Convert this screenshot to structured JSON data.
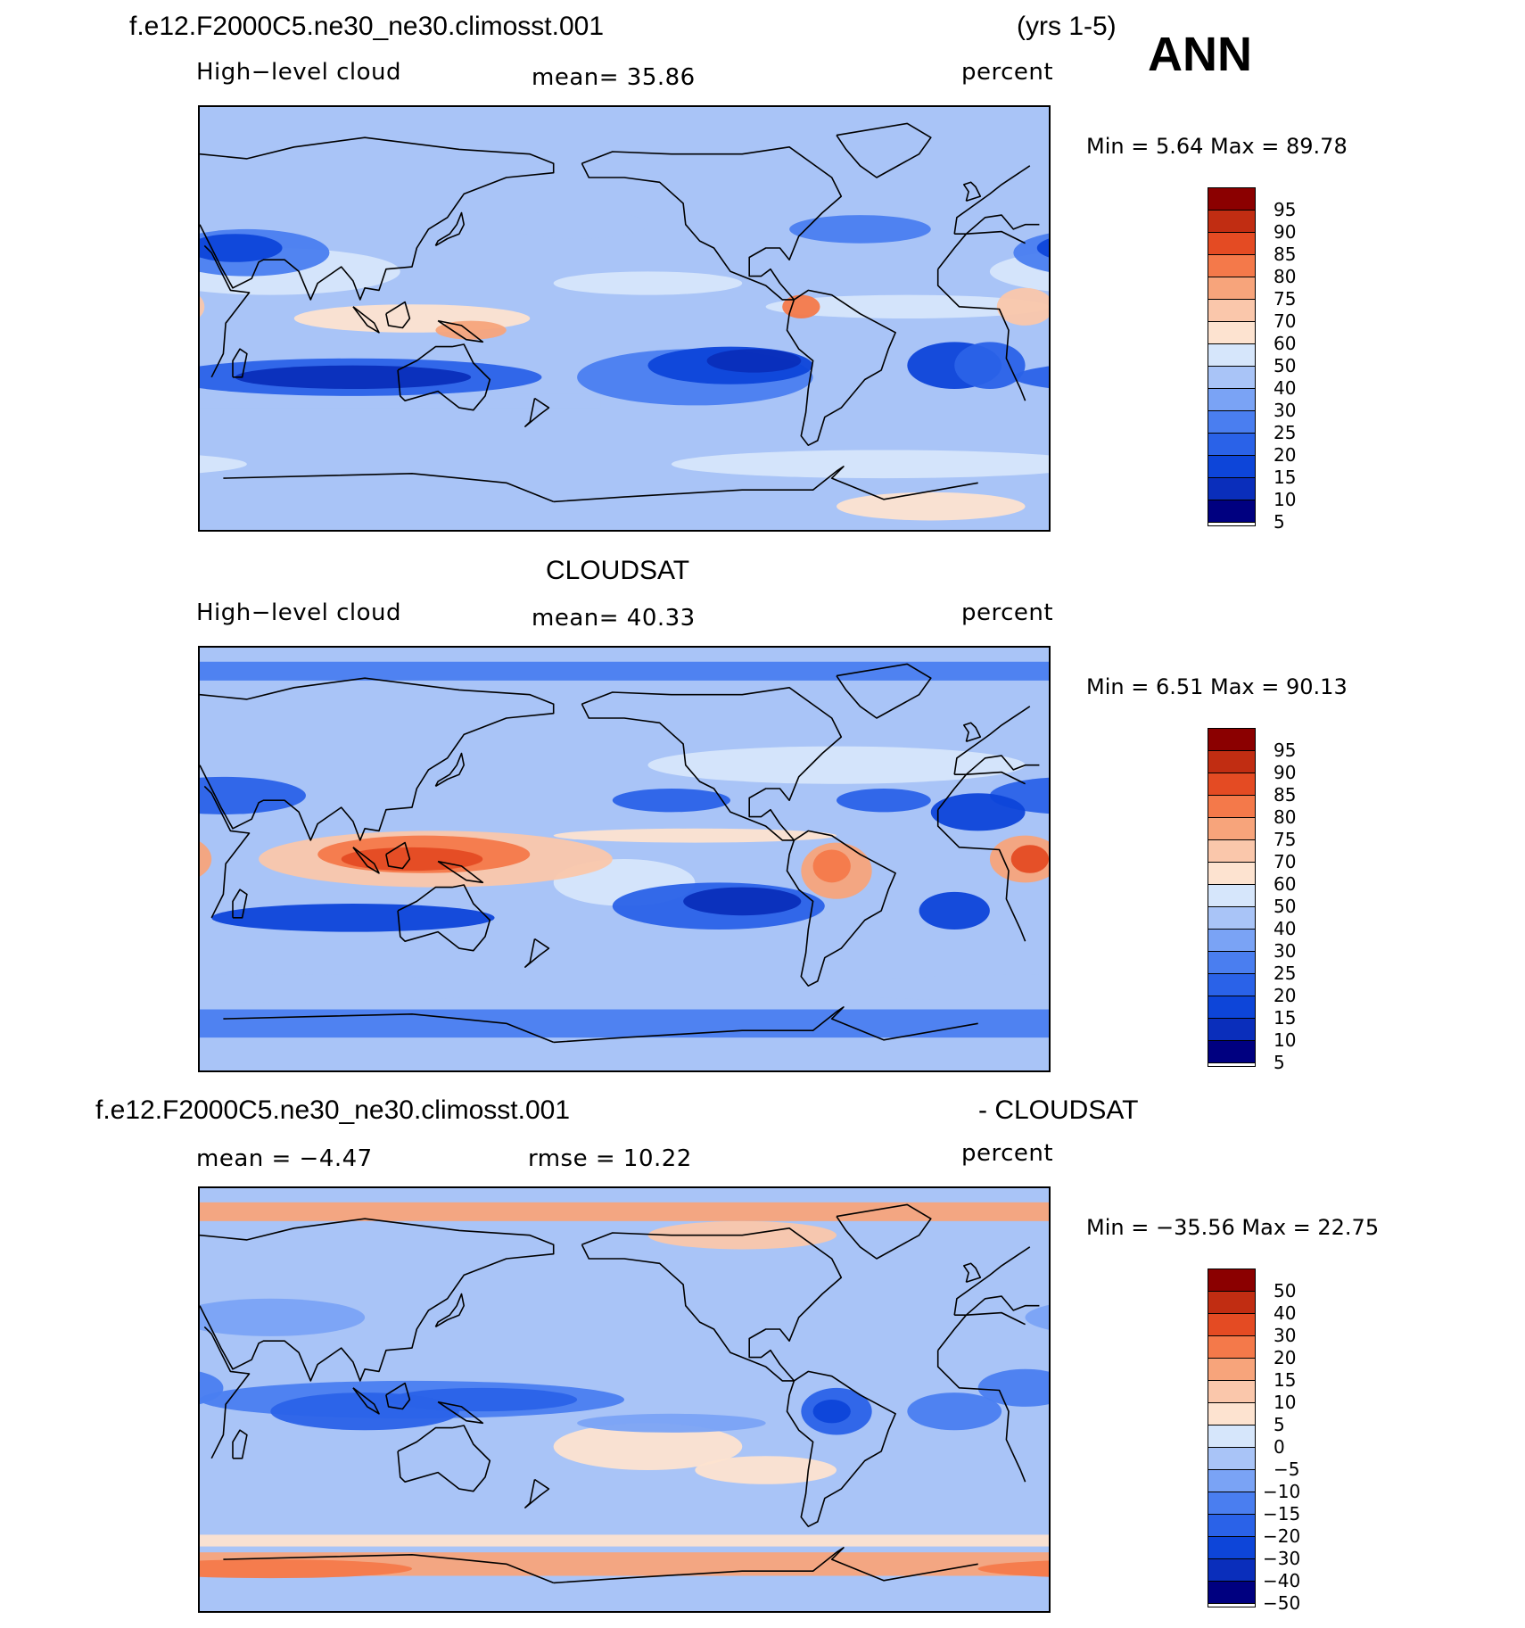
{
  "header": {
    "case_name": "f.e12.F2000C5.ne30_ne30.climosst.001",
    "years": "(yrs 1-5)",
    "season": "ANN"
  },
  "colors": {
    "b7": "#000080",
    "b6": "#0a2ebb",
    "b5": "#0d45d9",
    "b4": "#2a62e8",
    "b3": "#4a7ef0",
    "b2": "#7aa3f5",
    "b1": "#a9c4f7",
    "b0": "#d6e6fb",
    "r0": "#fde3d0",
    "r1": "#fac7ab",
    "r2": "#f7a47b",
    "r3": "#f4794a",
    "r4": "#e44b23",
    "r5": "#c12d12",
    "r6": "#8b0000",
    "land_line": "#000000"
  },
  "panels": [
    {
      "id": "model",
      "top_title": "",
      "left_label": "High−level cloud",
      "center_label": "mean=   35.86",
      "right_label": "percent",
      "minmax": "Min =     5.64  Max =    89.78",
      "colorbar": {
        "levels": [
          "95",
          "90",
          "85",
          "80",
          "75",
          "70",
          "60",
          "50",
          "40",
          "30",
          "25",
          "20",
          "15",
          "10",
          "5"
        ],
        "colors": [
          "#8b0000",
          "#c12d12",
          "#e44b23",
          "#f4794a",
          "#f7a47b",
          "#fac7ab",
          "#fde3d0",
          "#d6e6fb",
          "#a9c4f7",
          "#7aa3f5",
          "#4a7ef0",
          "#2a62e8",
          "#0d45d9",
          "#0a2ebb",
          "#000080"
        ]
      },
      "features": [
        {
          "type": "band",
          "lat": -35,
          "lon0": -180,
          "lon1": -10,
          "width": 6,
          "c": "b1"
        },
        {
          "type": "blob",
          "lat": 15,
          "lon": -140,
          "rx": 40,
          "ry": 5,
          "c": "b0"
        },
        {
          "type": "blob",
          "lat": 5,
          "lon": -30,
          "rx": 60,
          "ry": 5,
          "c": "b0"
        },
        {
          "type": "blob",
          "lat": 20,
          "lon": 60,
          "rx": 55,
          "ry": 10,
          "c": "b0"
        },
        {
          "type": "blob",
          "lat": -62,
          "lon": -40,
          "rx": 90,
          "ry": 6,
          "c": "b0"
        },
        {
          "type": "blob",
          "lat": 38,
          "lon": -50,
          "rx": 30,
          "ry": 6,
          "c": "b3"
        },
        {
          "type": "blob",
          "lat": 28,
          "lon": 50,
          "rx": 35,
          "ry": 10,
          "c": "b3"
        },
        {
          "type": "blob",
          "lat": 30,
          "lon": 45,
          "rx": 20,
          "ry": 6,
          "c": "b5"
        },
        {
          "type": "blob",
          "lat": -25,
          "lon": -120,
          "rx": 50,
          "ry": 12,
          "c": "b3"
        },
        {
          "type": "blob",
          "lat": -20,
          "lon": -105,
          "rx": 35,
          "ry": 8,
          "c": "b5"
        },
        {
          "type": "blob",
          "lat": -18,
          "lon": -95,
          "rx": 20,
          "ry": 5,
          "c": "b6"
        },
        {
          "type": "blob",
          "lat": -25,
          "lon": 95,
          "rx": 80,
          "ry": 8,
          "c": "b4"
        },
        {
          "type": "blob",
          "lat": -25,
          "lon": 95,
          "rx": 50,
          "ry": 5,
          "c": "b6"
        },
        {
          "type": "blob",
          "lat": -20,
          "lon": -10,
          "rx": 20,
          "ry": 10,
          "c": "b5"
        },
        {
          "type": "blob",
          "lat": -20,
          "lon": 5,
          "rx": 15,
          "ry": 10,
          "c": "b4"
        },
        {
          "type": "blob",
          "lat": 40,
          "lon": -170,
          "rx": 30,
          "ry": 6,
          "c": "b1"
        },
        {
          "type": "blob",
          "lat": 0,
          "lon": 120,
          "rx": 50,
          "ry": 6,
          "c": "r0"
        },
        {
          "type": "blob",
          "lat": 5,
          "lon": 20,
          "rx": 12,
          "ry": 8,
          "c": "r1"
        },
        {
          "type": "blob",
          "lat": -5,
          "lon": 145,
          "rx": 15,
          "ry": 4,
          "c": "r2"
        },
        {
          "type": "blob",
          "lat": 5,
          "lon": -75,
          "rx": 8,
          "ry": 5,
          "c": "r3"
        },
        {
          "type": "blob",
          "lat": -80,
          "lon": -20,
          "rx": 40,
          "ry": 6,
          "c": "r0"
        }
      ]
    },
    {
      "id": "obs",
      "top_title": "CLOUDSAT",
      "left_label": "High−level cloud",
      "center_label": "mean=   40.33",
      "right_label": "percent",
      "minmax": "Min =     6.51  Max =    90.13",
      "colorbar": {
        "levels": [
          "95",
          "90",
          "85",
          "80",
          "75",
          "70",
          "60",
          "50",
          "40",
          "30",
          "25",
          "20",
          "15",
          "10",
          "5"
        ],
        "colors": [
          "#8b0000",
          "#c12d12",
          "#e44b23",
          "#f4794a",
          "#f7a47b",
          "#fac7ab",
          "#fde3d0",
          "#d6e6fb",
          "#a9c4f7",
          "#7aa3f5",
          "#4a7ef0",
          "#2a62e8",
          "#0d45d9",
          "#0a2ebb",
          "#000080"
        ]
      },
      "features": [
        {
          "type": "band",
          "lat": 80,
          "lon0": -180,
          "lon1": 180,
          "width": 8,
          "c": "b3"
        },
        {
          "type": "band",
          "lat": -70,
          "lon0": -180,
          "lon1": 180,
          "width": 12,
          "c": "b3"
        },
        {
          "type": "blob",
          "lat": 40,
          "lon": -60,
          "rx": 80,
          "ry": 8,
          "c": "b0"
        },
        {
          "type": "blob",
          "lat": -10,
          "lon": -150,
          "rx": 30,
          "ry": 10,
          "c": "b0"
        },
        {
          "type": "blob",
          "lat": -55,
          "lon": 50,
          "rx": 120,
          "ry": 6,
          "c": "b1"
        },
        {
          "type": "blob",
          "lat": 27,
          "lon": 40,
          "rx": 35,
          "ry": 8,
          "c": "b4"
        },
        {
          "type": "blob",
          "lat": 20,
          "lon": 0,
          "rx": 20,
          "ry": 8,
          "c": "b5"
        },
        {
          "type": "blob",
          "lat": 25,
          "lon": -130,
          "rx": 25,
          "ry": 5,
          "c": "b4"
        },
        {
          "type": "blob",
          "lat": 25,
          "lon": -40,
          "rx": 20,
          "ry": 5,
          "c": "b4"
        },
        {
          "type": "blob",
          "lat": -20,
          "lon": -110,
          "rx": 45,
          "ry": 10,
          "c": "b4"
        },
        {
          "type": "blob",
          "lat": -18,
          "lon": -100,
          "rx": 25,
          "ry": 6,
          "c": "b6"
        },
        {
          "type": "blob",
          "lat": -25,
          "lon": 95,
          "rx": 60,
          "ry": 6,
          "c": "b5"
        },
        {
          "type": "blob",
          "lat": -22,
          "lon": -10,
          "rx": 15,
          "ry": 8,
          "c": "b5"
        },
        {
          "type": "blob",
          "lat": 0,
          "lon": 130,
          "rx": 75,
          "ry": 12,
          "c": "r1"
        },
        {
          "type": "blob",
          "lat": 2,
          "lon": 125,
          "rx": 45,
          "ry": 8,
          "c": "r3"
        },
        {
          "type": "blob",
          "lat": 0,
          "lon": 120,
          "rx": 30,
          "ry": 5,
          "c": "r4"
        },
        {
          "type": "blob",
          "lat": 0,
          "lon": 20,
          "rx": 15,
          "ry": 10,
          "c": "r2"
        },
        {
          "type": "blob",
          "lat": 0,
          "lon": 22,
          "rx": 8,
          "ry": 6,
          "c": "r4"
        },
        {
          "type": "blob",
          "lat": -5,
          "lon": -60,
          "rx": 15,
          "ry": 12,
          "c": "r2"
        },
        {
          "type": "blob",
          "lat": -3,
          "lon": -62,
          "rx": 8,
          "ry": 7,
          "c": "r3"
        },
        {
          "type": "blob",
          "lat": 10,
          "lon": -120,
          "rx": 60,
          "ry": 3,
          "c": "r0"
        }
      ]
    },
    {
      "id": "diff",
      "top_title_left": "f.e12.F2000C5.ne30_ne30.climosst.001",
      "top_title_right": "- CLOUDSAT",
      "left_label": "mean =   −4.47",
      "center_label": "rmse =    10.22",
      "right_label": "percent",
      "minmax": "Min = −35.56  Max =    22.75",
      "colorbar": {
        "levels": [
          "50",
          "40",
          "30",
          "20",
          "15",
          "10",
          "5",
          "0",
          "−5",
          "−10",
          "−15",
          "−20",
          "−30",
          "−40",
          "−50"
        ],
        "colors": [
          "#8b0000",
          "#c12d12",
          "#e44b23",
          "#f4794a",
          "#f7a47b",
          "#fac7ab",
          "#fde3d0",
          "#d6e6fb",
          "#a9c4f7",
          "#7aa3f5",
          "#4a7ef0",
          "#2a62e8",
          "#0d45d9",
          "#0a2ebb",
          "#000080"
        ]
      },
      "features": [
        {
          "type": "band",
          "lat": 80,
          "lon0": -180,
          "lon1": 180,
          "width": 8,
          "c": "r2"
        },
        {
          "type": "band",
          "lat": -70,
          "lon0": -180,
          "lon1": 180,
          "width": 10,
          "c": "r2"
        },
        {
          "type": "band",
          "lat": -60,
          "lon0": -180,
          "lon1": 180,
          "width": 5,
          "c": "r0"
        },
        {
          "type": "blob",
          "lat": 70,
          "lon": -100,
          "rx": 40,
          "ry": 6,
          "c": "r1"
        },
        {
          "type": "blob",
          "lat": -20,
          "lon": -140,
          "rx": 40,
          "ry": 10,
          "c": "r0"
        },
        {
          "type": "blob",
          "lat": -30,
          "lon": -90,
          "rx": 30,
          "ry": 6,
          "c": "r0"
        },
        {
          "type": "blob",
          "lat": -72,
          "lon": 60,
          "rx": 60,
          "ry": 4,
          "c": "r3"
        },
        {
          "type": "blob",
          "lat": 35,
          "lon": 60,
          "rx": 40,
          "ry": 8,
          "c": "b2"
        },
        {
          "type": "blob",
          "lat": 0,
          "lon": 120,
          "rx": 90,
          "ry": 8,
          "c": "b3"
        },
        {
          "type": "blob",
          "lat": -5,
          "lon": 100,
          "rx": 40,
          "ry": 8,
          "c": "b4"
        },
        {
          "type": "blob",
          "lat": 0,
          "lon": 150,
          "rx": 40,
          "ry": 5,
          "c": "b4"
        },
        {
          "type": "blob",
          "lat": 5,
          "lon": 20,
          "rx": 20,
          "ry": 8,
          "c": "b3"
        },
        {
          "type": "blob",
          "lat": -5,
          "lon": -60,
          "rx": 15,
          "ry": 10,
          "c": "b4"
        },
        {
          "type": "blob",
          "lat": -5,
          "lon": -62,
          "rx": 8,
          "ry": 5,
          "c": "b5"
        },
        {
          "type": "blob",
          "lat": -5,
          "lon": -10,
          "rx": 20,
          "ry": 8,
          "c": "b3"
        },
        {
          "type": "blob",
          "lat": -10,
          "lon": -130,
          "rx": 40,
          "ry": 4,
          "c": "b2"
        }
      ]
    }
  ]
}
